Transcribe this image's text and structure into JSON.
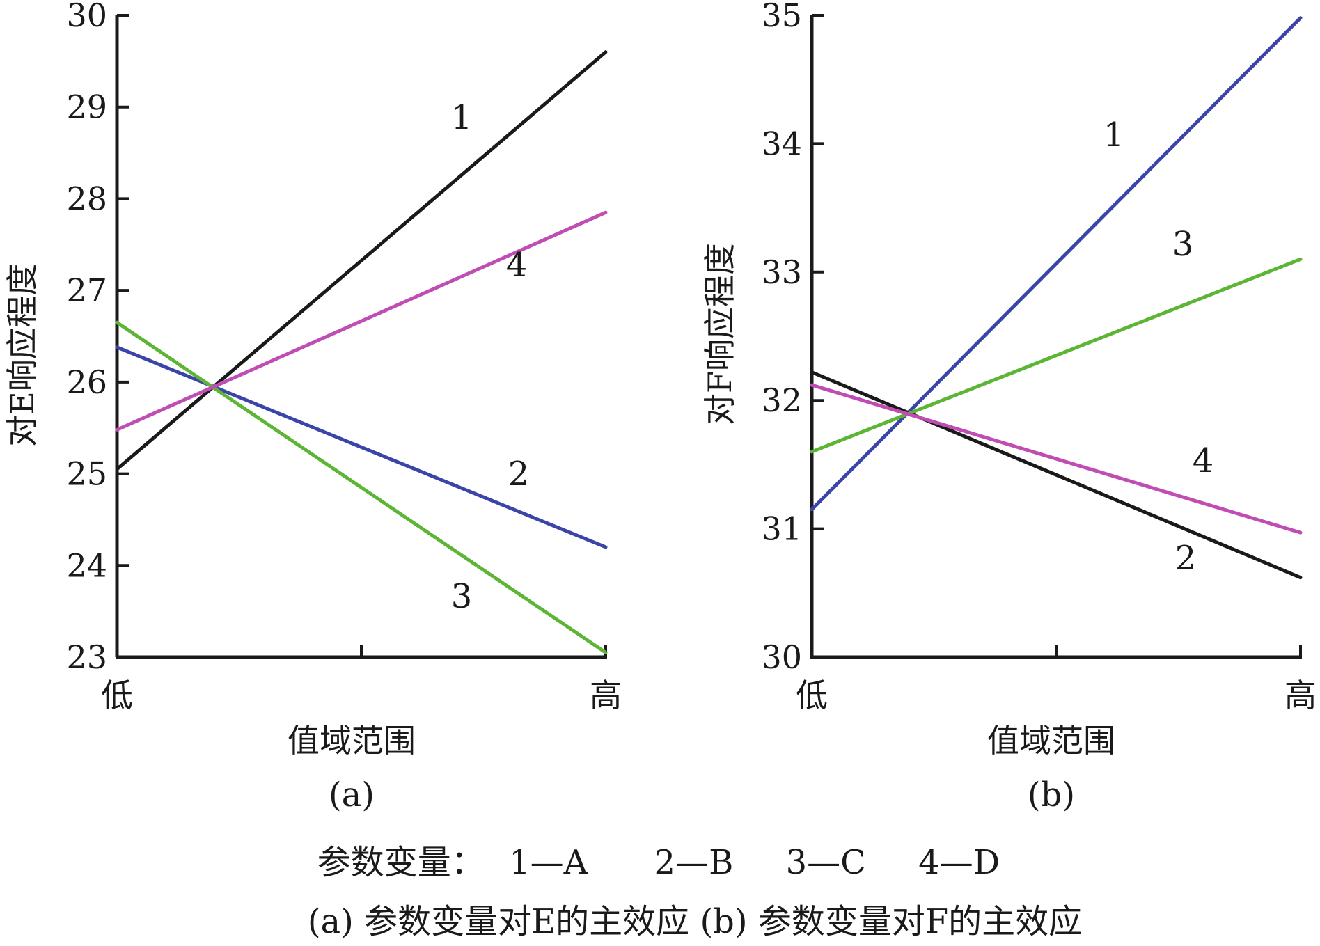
{
  "chart_data": [
    {
      "type": "line",
      "panel_label": "(a)",
      "xlabel": "值域范围",
      "ylabel": "对E响应程度",
      "x_tick_labels": [
        "低",
        "高"
      ],
      "x": [
        0,
        1
      ],
      "ylim": [
        23,
        30
      ],
      "yticks": [
        23,
        24,
        25,
        26,
        27,
        28,
        29,
        30
      ],
      "grid": false,
      "series": [
        {
          "label": "1",
          "color": "#1a1a1a",
          "values": [
            25.05,
            29.6
          ]
        },
        {
          "label": "2",
          "color": "#3b45a8",
          "values": [
            26.38,
            24.2
          ]
        },
        {
          "label": "3",
          "color": "#5cb535",
          "values": [
            26.65,
            23.05
          ]
        },
        {
          "label": "4",
          "color": "#c04db3",
          "values": [
            25.48,
            27.85
          ]
        }
      ]
    },
    {
      "type": "line",
      "panel_label": "(b)",
      "xlabel": "值域范围",
      "ylabel": "对F响应程度",
      "x_tick_labels": [
        "低",
        "高"
      ],
      "x": [
        0,
        1
      ],
      "ylim": [
        30,
        35
      ],
      "yticks": [
        30,
        31,
        32,
        33,
        34,
        35
      ],
      "grid": false,
      "series": [
        {
          "label": "1",
          "color": "#3b45a8",
          "values": [
            31.15,
            34.98
          ]
        },
        {
          "label": "2",
          "color": "#1a1a1a",
          "values": [
            32.22,
            30.62
          ]
        },
        {
          "label": "3",
          "color": "#5cb535",
          "values": [
            31.6,
            33.1
          ]
        },
        {
          "label": "4",
          "color": "#c04db3",
          "values": [
            32.12,
            30.97
          ]
        }
      ]
    }
  ],
  "legend": {
    "prefix": "参数变量：",
    "items": [
      "1—A",
      "2—B",
      "3—C",
      "4—D"
    ]
  },
  "caption": "(a) 参数变量对E的主效应 (b) 参数变量对F的主效应"
}
